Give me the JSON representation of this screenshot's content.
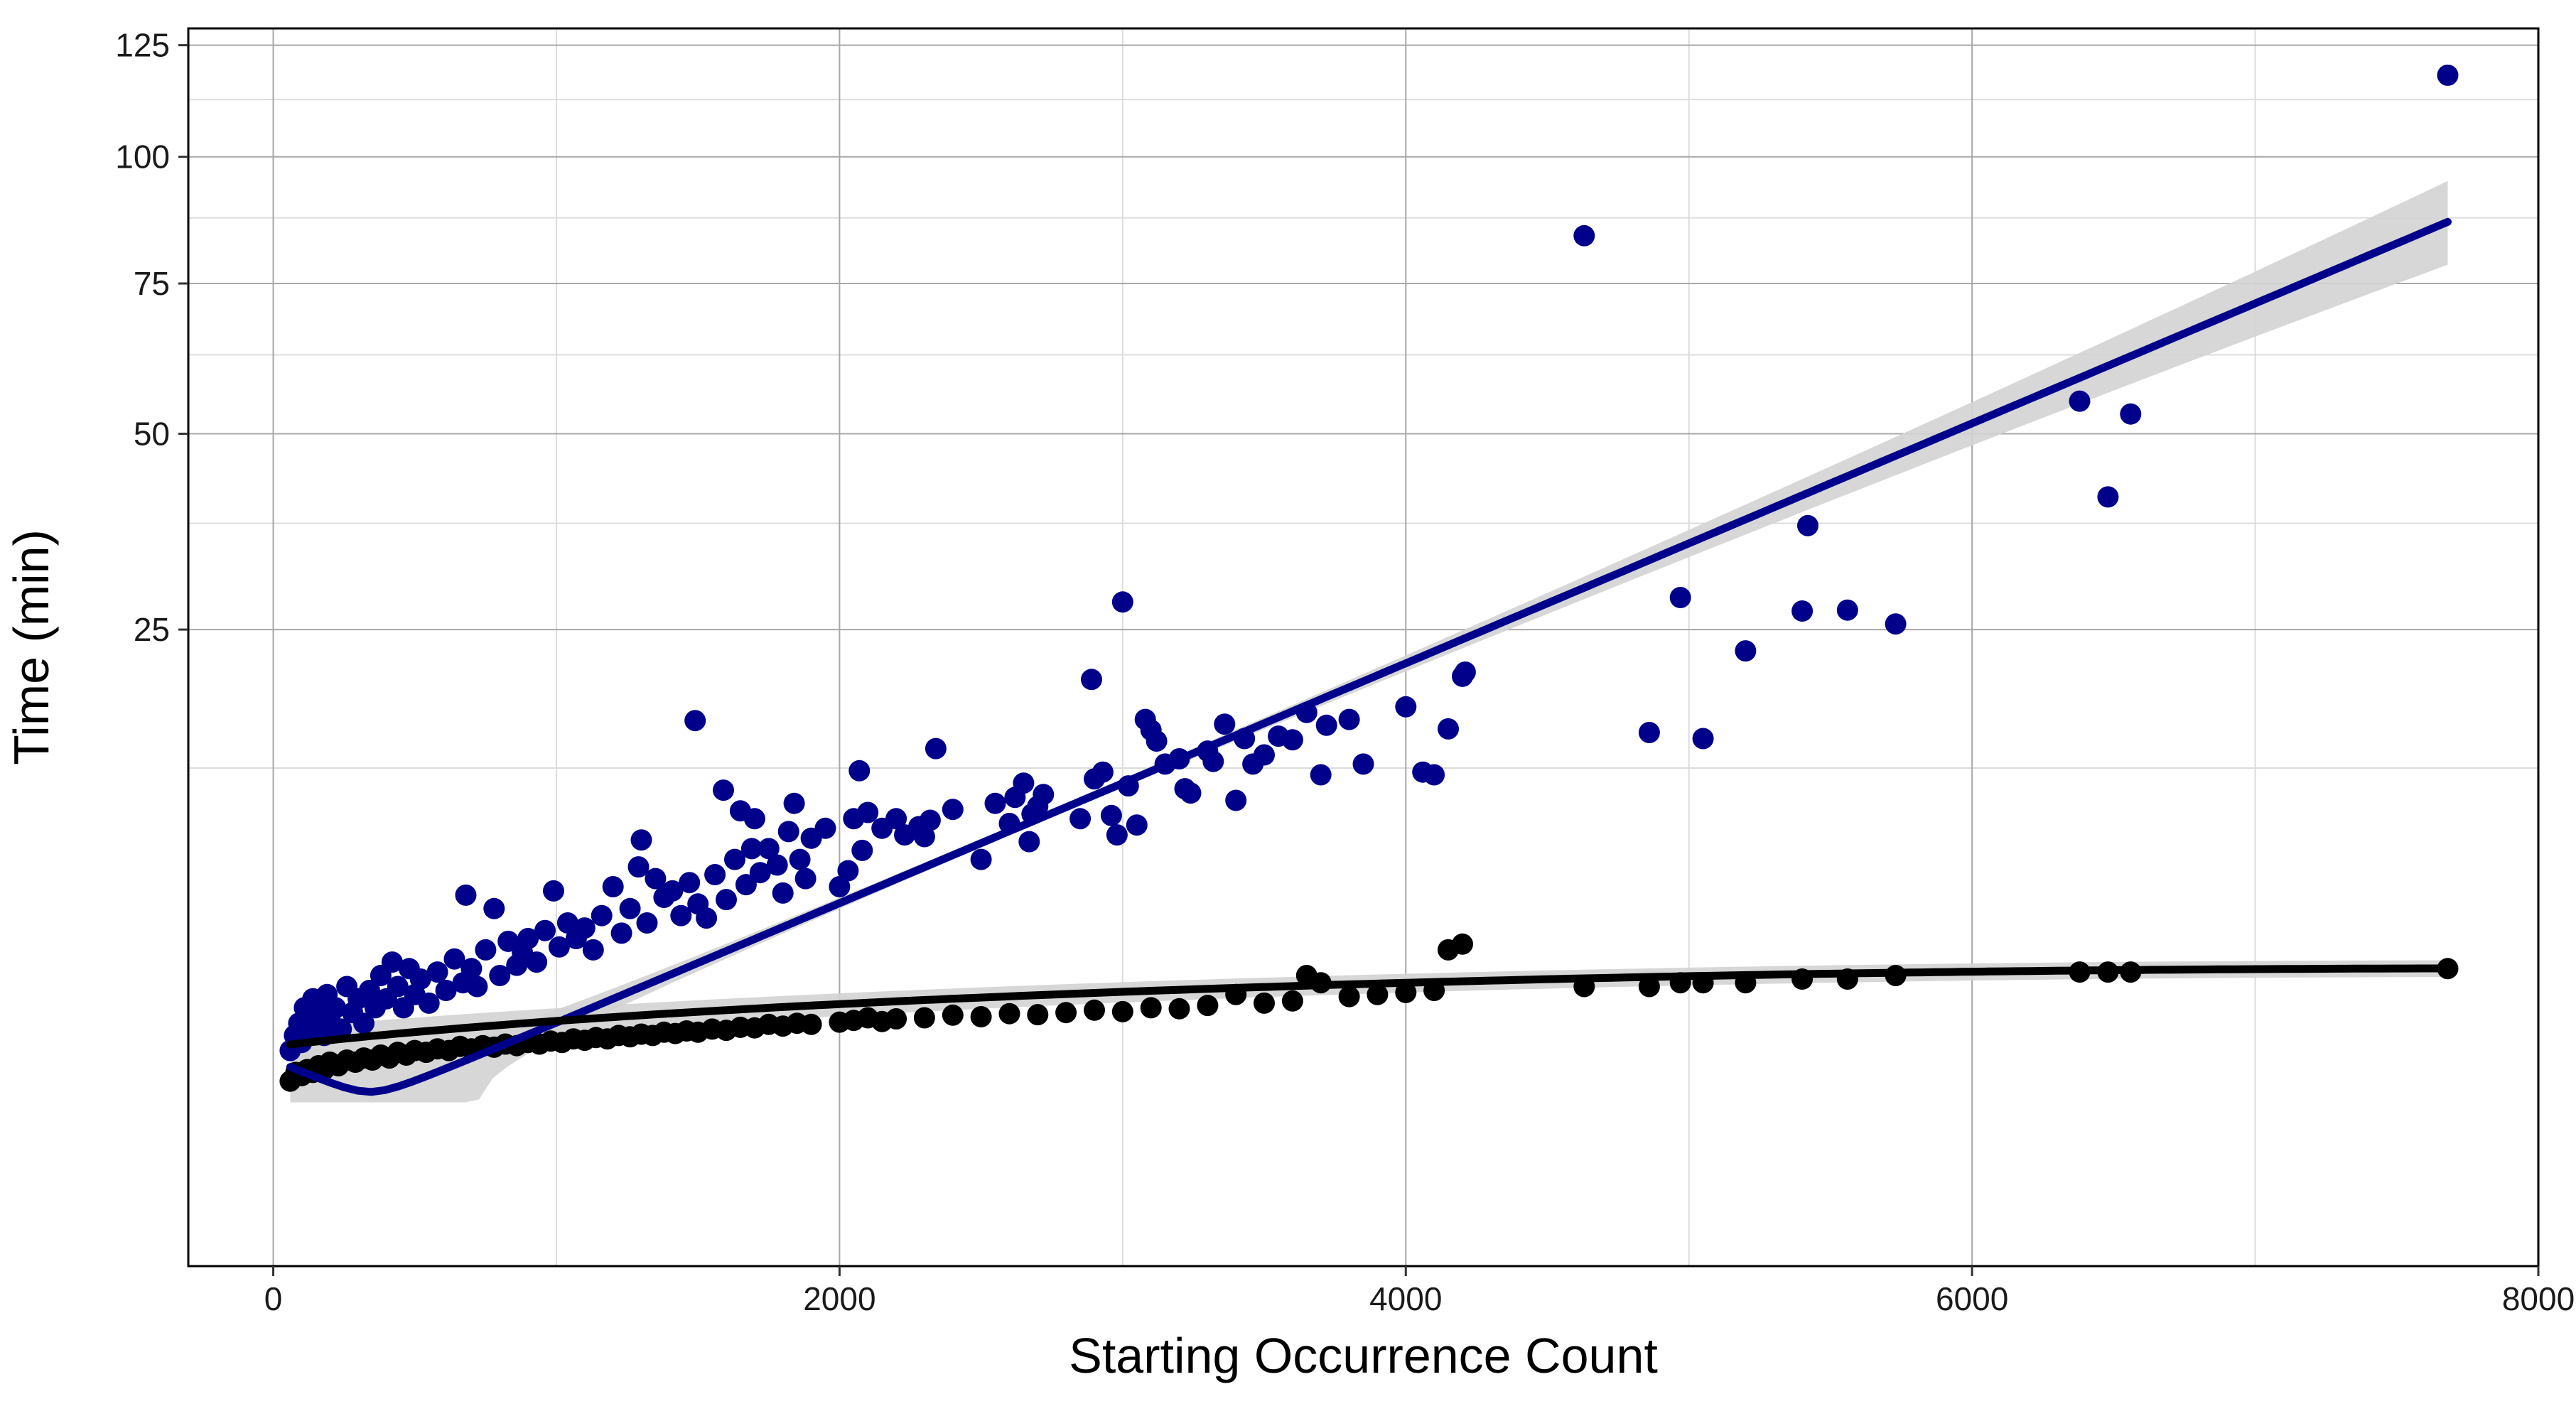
{
  "chart_data": {
    "type": "scatter",
    "title": "",
    "xlabel": "Starting Occurrence Count",
    "ylabel": "Time (min)",
    "xlim": [
      -300,
      8000
    ],
    "ylim": [
      -3,
      129
    ],
    "y_scale": "sqrt",
    "x_ticks": [
      0,
      2000,
      4000,
      6000,
      8000
    ],
    "y_ticks": [
      25,
      50,
      75,
      100,
      125
    ],
    "grid": true,
    "legend": "none",
    "series": [
      {
        "color": "#00008B",
        "points": [
          [
            60,
            0.3
          ],
          [
            75,
            0.5
          ],
          [
            90,
            0.7
          ],
          [
            100,
            0.4
          ],
          [
            110,
            1.0
          ],
          [
            120,
            0.8
          ],
          [
            130,
            0.6
          ],
          [
            140,
            1.2
          ],
          [
            150,
            0.9
          ],
          [
            160,
            0.7
          ],
          [
            170,
            1.1
          ],
          [
            180,
            0.5
          ],
          [
            190,
            1.3
          ],
          [
            200,
            0.8
          ],
          [
            220,
            1.0
          ],
          [
            240,
            0.6
          ],
          [
            260,
            1.5
          ],
          [
            280,
            0.9
          ],
          [
            300,
            1.2
          ],
          [
            320,
            0.7
          ],
          [
            340,
            1.4
          ],
          [
            360,
            1.0
          ],
          [
            380,
            1.8
          ],
          [
            400,
            1.2
          ],
          [
            420,
            2.2
          ],
          [
            440,
            1.5
          ],
          [
            460,
            1.0
          ],
          [
            480,
            2.0
          ],
          [
            500,
            1.3
          ],
          [
            520,
            1.7
          ],
          [
            550,
            1.1
          ],
          [
            580,
            1.9
          ],
          [
            610,
            1.4
          ],
          [
            640,
            2.3
          ],
          [
            670,
            1.6
          ],
          [
            680,
            4.8
          ],
          [
            700,
            2.0
          ],
          [
            720,
            1.5
          ],
          [
            750,
            2.6
          ],
          [
            780,
            4.2
          ],
          [
            800,
            1.8
          ],
          [
            830,
            2.9
          ],
          [
            860,
            2.1
          ],
          [
            880,
            2.5
          ],
          [
            900,
            3.0
          ],
          [
            930,
            2.2
          ],
          [
            960,
            3.3
          ],
          [
            990,
            5.0
          ],
          [
            1010,
            2.7
          ],
          [
            1040,
            3.6
          ],
          [
            1070,
            3.0
          ],
          [
            1100,
            3.4
          ],
          [
            1130,
            2.6
          ],
          [
            1160,
            3.9
          ],
          [
            1200,
            5.2
          ],
          [
            1230,
            3.2
          ],
          [
            1260,
            4.2
          ],
          [
            1290,
            6.2
          ],
          [
            1300,
            7.7
          ],
          [
            1320,
            3.6
          ],
          [
            1350,
            5.6
          ],
          [
            1380,
            4.7
          ],
          [
            1410,
            5.0
          ],
          [
            1440,
            3.9
          ],
          [
            1470,
            5.4
          ],
          [
            1490,
            16.3
          ],
          [
            1500,
            4.4
          ],
          [
            1530,
            3.8
          ],
          [
            1560,
            5.8
          ],
          [
            1590,
            10.9
          ],
          [
            1600,
            4.6
          ],
          [
            1630,
            6.6
          ],
          [
            1650,
            9.5
          ],
          [
            1670,
            5.3
          ],
          [
            1690,
            7.2
          ],
          [
            1700,
            9.0
          ],
          [
            1720,
            5.9
          ],
          [
            1750,
            7.2
          ],
          [
            1780,
            6.3
          ],
          [
            1800,
            4.9
          ],
          [
            1820,
            8.2
          ],
          [
            1840,
            10.0
          ],
          [
            1860,
            6.6
          ],
          [
            1880,
            5.6
          ],
          [
            1900,
            7.8
          ],
          [
            1950,
            8.4
          ],
          [
            2000,
            5.2
          ],
          [
            2030,
            6.0
          ],
          [
            2050,
            9.0
          ],
          [
            2070,
            12.3
          ],
          [
            2080,
            7.1
          ],
          [
            2100,
            9.4
          ],
          [
            2150,
            8.4
          ],
          [
            2200,
            9.0
          ],
          [
            2230,
            8.0
          ],
          [
            2280,
            8.5
          ],
          [
            2300,
            7.9
          ],
          [
            2320,
            8.9
          ],
          [
            2340,
            14.0
          ],
          [
            2400,
            9.6
          ],
          [
            2500,
            6.6
          ],
          [
            2550,
            10.0
          ],
          [
            2600,
            8.7
          ],
          [
            2620,
            10.4
          ],
          [
            2650,
            11.4
          ],
          [
            2670,
            7.6
          ],
          [
            2680,
            9.3
          ],
          [
            2700,
            9.8
          ],
          [
            2720,
            10.6
          ],
          [
            2850,
            9.0
          ],
          [
            2890,
            20.0
          ],
          [
            2900,
            11.7
          ],
          [
            2930,
            12.2
          ],
          [
            2960,
            9.2
          ],
          [
            2980,
            8.0
          ],
          [
            3000,
            28.0
          ],
          [
            3020,
            11.2
          ],
          [
            3050,
            8.6
          ],
          [
            3080,
            16.4
          ],
          [
            3100,
            15.5
          ],
          [
            3120,
            14.6
          ],
          [
            3150,
            12.8
          ],
          [
            3200,
            13.2
          ],
          [
            3220,
            11.0
          ],
          [
            3240,
            10.7
          ],
          [
            3300,
            13.8
          ],
          [
            3320,
            13.0
          ],
          [
            3360,
            16.0
          ],
          [
            3400,
            10.2
          ],
          [
            3430,
            14.8
          ],
          [
            3460,
            12.8
          ],
          [
            3500,
            13.5
          ],
          [
            3550,
            15.0
          ],
          [
            3600,
            14.7
          ],
          [
            3650,
            17.0
          ],
          [
            3700,
            12.0
          ],
          [
            3720,
            15.9
          ],
          [
            3800,
            16.4
          ],
          [
            3850,
            12.8
          ],
          [
            4000,
            17.5
          ],
          [
            4060,
            12.2
          ],
          [
            4100,
            12.0
          ],
          [
            4150,
            15.6
          ],
          [
            4200,
            20.3
          ],
          [
            4210,
            20.7
          ],
          [
            4630,
            84.0
          ],
          [
            4860,
            15.3
          ],
          [
            4970,
            28.5
          ],
          [
            5050,
            14.8
          ],
          [
            5200,
            22.8
          ],
          [
            5400,
            27.0
          ],
          [
            5420,
            37.2
          ],
          [
            5560,
            27.1
          ],
          [
            5730,
            25.6
          ],
          [
            6380,
            55.0
          ],
          [
            6480,
            41.0
          ],
          [
            6560,
            53.0
          ],
          [
            7680,
            118.0
          ]
        ]
      },
      {
        "color": "#000000",
        "points": [
          [
            60,
            0.05
          ],
          [
            80,
            0.1
          ],
          [
            100,
            0.08
          ],
          [
            120,
            0.12
          ],
          [
            140,
            0.1
          ],
          [
            160,
            0.15
          ],
          [
            180,
            0.12
          ],
          [
            200,
            0.18
          ],
          [
            230,
            0.15
          ],
          [
            260,
            0.2
          ],
          [
            290,
            0.18
          ],
          [
            320,
            0.22
          ],
          [
            350,
            0.2
          ],
          [
            380,
            0.25
          ],
          [
            410,
            0.22
          ],
          [
            440,
            0.28
          ],
          [
            470,
            0.25
          ],
          [
            500,
            0.3
          ],
          [
            540,
            0.28
          ],
          [
            580,
            0.32
          ],
          [
            620,
            0.3
          ],
          [
            660,
            0.35
          ],
          [
            700,
            0.32
          ],
          [
            740,
            0.36
          ],
          [
            780,
            0.34
          ],
          [
            820,
            0.38
          ],
          [
            860,
            0.36
          ],
          [
            900,
            0.4
          ],
          [
            940,
            0.38
          ],
          [
            980,
            0.42
          ],
          [
            1020,
            0.4
          ],
          [
            1060,
            0.45
          ],
          [
            1100,
            0.43
          ],
          [
            1140,
            0.47
          ],
          [
            1180,
            0.45
          ],
          [
            1220,
            0.5
          ],
          [
            1260,
            0.48
          ],
          [
            1300,
            0.52
          ],
          [
            1340,
            0.5
          ],
          [
            1380,
            0.55
          ],
          [
            1420,
            0.53
          ],
          [
            1460,
            0.57
          ],
          [
            1500,
            0.55
          ],
          [
            1550,
            0.6
          ],
          [
            1600,
            0.58
          ],
          [
            1650,
            0.63
          ],
          [
            1700,
            0.62
          ],
          [
            1750,
            0.68
          ],
          [
            1800,
            0.65
          ],
          [
            1850,
            0.7
          ],
          [
            1900,
            0.68
          ],
          [
            2000,
            0.72
          ],
          [
            2050,
            0.75
          ],
          [
            2100,
            0.8
          ],
          [
            2150,
            0.73
          ],
          [
            2200,
            0.78
          ],
          [
            2300,
            0.8
          ],
          [
            2400,
            0.85
          ],
          [
            2500,
            0.82
          ],
          [
            2600,
            0.88
          ],
          [
            2700,
            0.86
          ],
          [
            2800,
            0.9
          ],
          [
            2900,
            0.95
          ],
          [
            3000,
            0.92
          ],
          [
            3100,
            1.0
          ],
          [
            3200,
            0.98
          ],
          [
            3300,
            1.05
          ],
          [
            3400,
            1.3
          ],
          [
            3500,
            1.1
          ],
          [
            3600,
            1.15
          ],
          [
            3650,
            1.8
          ],
          [
            3700,
            1.6
          ],
          [
            3800,
            1.25
          ],
          [
            3900,
            1.3
          ],
          [
            4000,
            1.35
          ],
          [
            4100,
            1.4
          ],
          [
            4150,
            2.6
          ],
          [
            4200,
            2.8
          ],
          [
            4630,
            1.5
          ],
          [
            4860,
            1.5
          ],
          [
            4970,
            1.6
          ],
          [
            5050,
            1.6
          ],
          [
            5200,
            1.6
          ],
          [
            5400,
            1.7
          ],
          [
            5560,
            1.7
          ],
          [
            5730,
            1.8
          ],
          [
            6380,
            1.9
          ],
          [
            6480,
            1.9
          ],
          [
            6560,
            1.9
          ],
          [
            7680,
            2.0
          ]
        ]
      }
    ],
    "fits": [
      {
        "color": "#00008B",
        "model": "quadratic",
        "coefficients": [
          0.2,
          -0.0011,
          1.61e-06
        ],
        "x_range": [
          60,
          7680
        ],
        "confidence_band": true,
        "band_color": "#d3d3d3"
      },
      {
        "color": "#000000",
        "model": "saturating",
        "coefficients": [
          0.35,
          0.000417,
          -2.62e-08
        ],
        "x_range": [
          60,
          7680
        ],
        "confidence_band": true,
        "band_color": "#d3d3d3"
      }
    ]
  }
}
